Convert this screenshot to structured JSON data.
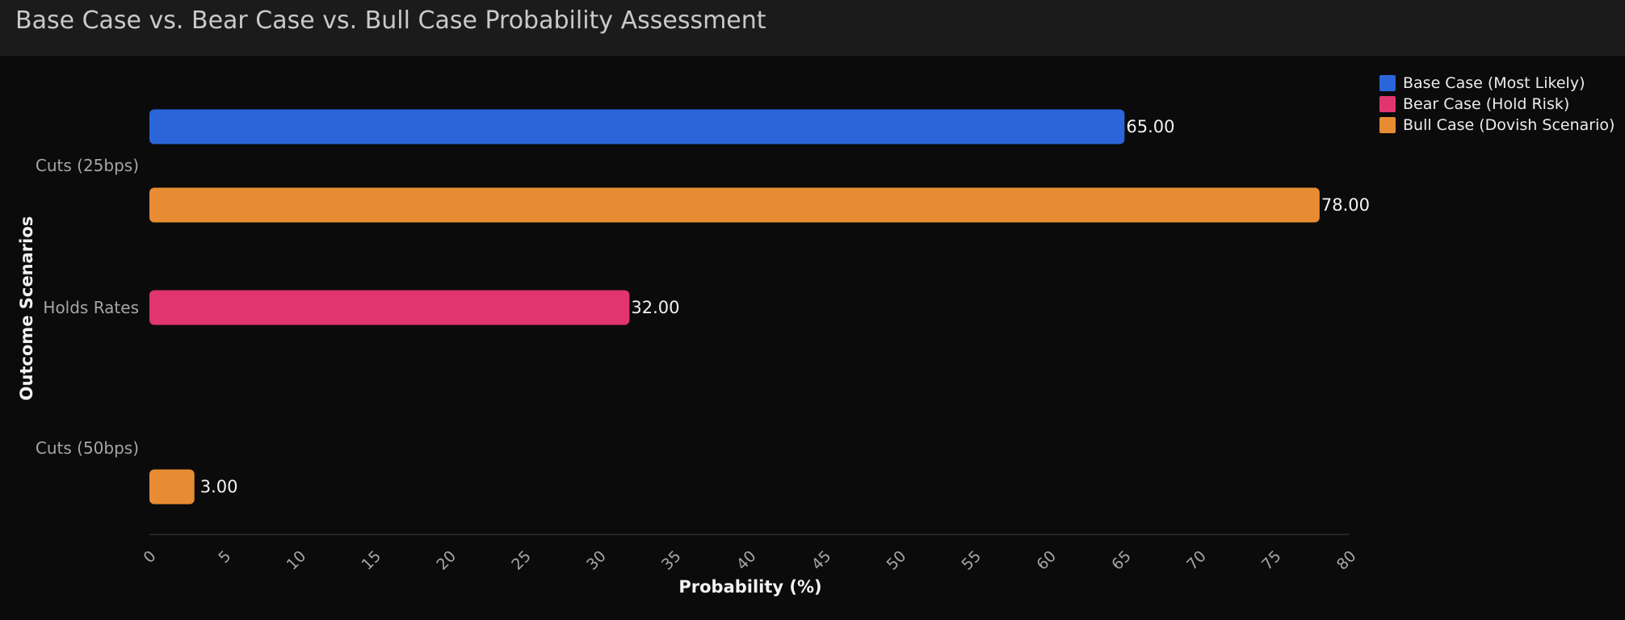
{
  "chart_data": {
    "type": "bar",
    "orientation": "horizontal",
    "title": "Base Case vs. Bear Case vs. Bull Case Probability Assessment",
    "xlabel": "Probability (%)",
    "ylabel": "Outcome Scenarios",
    "xlim": [
      0,
      80
    ],
    "xticks": [
      0,
      5,
      10,
      15,
      20,
      25,
      30,
      35,
      40,
      45,
      50,
      55,
      60,
      65,
      70,
      75,
      80
    ],
    "categories": [
      "Cuts (25bps)",
      "Holds Rates",
      "Cuts (50bps)"
    ],
    "series": [
      {
        "name": "Base Case (Most Likely)",
        "color": "#2a66d9",
        "values": [
          65,
          null,
          null
        ]
      },
      {
        "name": "Bear Case (Hold Risk)",
        "color": "#e13570",
        "values": [
          null,
          32,
          null
        ]
      },
      {
        "name": "Bull Case (Dovish Scenario)",
        "color": "#e88c33",
        "values": [
          78,
          null,
          3
        ]
      }
    ],
    "value_format": "2 decimals",
    "grid": false,
    "legend_position": "top-right"
  }
}
